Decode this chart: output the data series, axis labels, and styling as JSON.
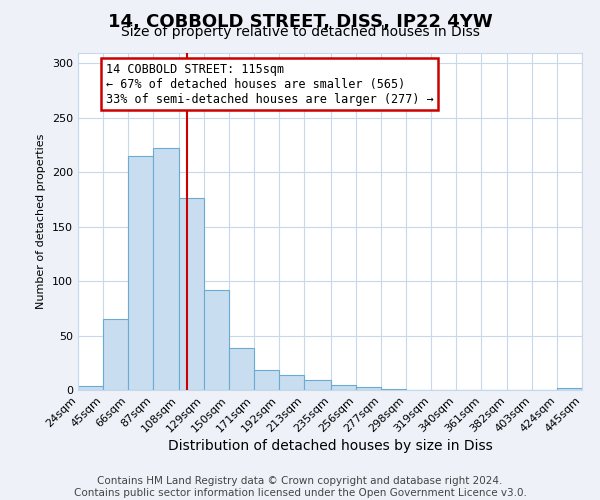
{
  "title": "14, COBBOLD STREET, DISS, IP22 4YW",
  "subtitle": "Size of property relative to detached houses in Diss",
  "xlabel": "Distribution of detached houses by size in Diss",
  "ylabel": "Number of detached properties",
  "bin_edges": [
    24,
    45,
    66,
    87,
    108,
    129,
    150,
    171,
    192,
    213,
    235,
    256,
    277,
    298,
    319,
    340,
    361,
    382,
    403,
    424,
    445
  ],
  "bar_heights": [
    4,
    65,
    215,
    222,
    176,
    92,
    39,
    18,
    14,
    9,
    5,
    3,
    1,
    0,
    0,
    0,
    0,
    0,
    0,
    2
  ],
  "bar_color": "#c9ddf0",
  "bar_edge_color": "#6aabd2",
  "property_size": 115,
  "vline_color": "#cc0000",
  "annotation_line1": "14 COBBOLD STREET: 115sqm",
  "annotation_line2": "← 67% of detached houses are smaller (565)",
  "annotation_line3": "33% of semi-detached houses are larger (277) →",
  "annotation_box_color": "#ffffff",
  "annotation_box_edge_color": "#cc0000",
  "ylim": [
    0,
    310
  ],
  "footer_line1": "Contains HM Land Registry data © Crown copyright and database right 2024.",
  "footer_line2": "Contains public sector information licensed under the Open Government Licence v3.0.",
  "background_color": "#eef2f8",
  "plot_background_color": "#ffffff",
  "grid_color": "#c8d8eb",
  "title_fontsize": 13,
  "subtitle_fontsize": 10,
  "ylabel_fontsize": 8,
  "xlabel_fontsize": 10,
  "footer_fontsize": 7.5,
  "annotation_fontsize": 8.5,
  "tick_fontsize": 8
}
